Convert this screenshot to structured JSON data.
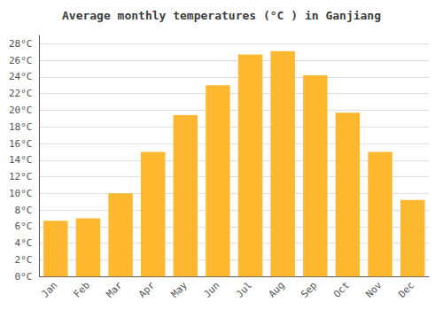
{
  "chart_data": {
    "type": "bar",
    "title": "Average monthly temperatures (°C ) in Ganjiang",
    "categories": [
      "Jan",
      "Feb",
      "Mar",
      "Apr",
      "May",
      "Jun",
      "Jul",
      "Aug",
      "Sep",
      "Oct",
      "Nov",
      "Dec"
    ],
    "values": [
      6.7,
      7.0,
      10.0,
      15.0,
      19.4,
      23.0,
      26.7,
      27.1,
      24.2,
      19.7,
      15.0,
      9.2
    ],
    "color": "#FDB830",
    "ylim": [
      0,
      29
    ],
    "yticks": [
      {
        "value": 0,
        "label": "0°C"
      },
      {
        "value": 2,
        "label": "2°C"
      },
      {
        "value": 4,
        "label": "4°C"
      },
      {
        "value": 6,
        "label": "6°C"
      },
      {
        "value": 8,
        "label": "8°C"
      },
      {
        "value": 10,
        "label": "10°C"
      },
      {
        "value": 12,
        "label": "12°C"
      },
      {
        "value": 14,
        "label": "14°C"
      },
      {
        "value": 16,
        "label": "16°C"
      },
      {
        "value": 18,
        "label": "18°C"
      },
      {
        "value": 20,
        "label": "20°C"
      },
      {
        "value": 22,
        "label": "22°C"
      },
      {
        "value": 24,
        "label": "24°C"
      },
      {
        "value": 26,
        "label": "26°C"
      },
      {
        "value": 28,
        "label": "28°C"
      }
    ],
    "grid": true
  }
}
